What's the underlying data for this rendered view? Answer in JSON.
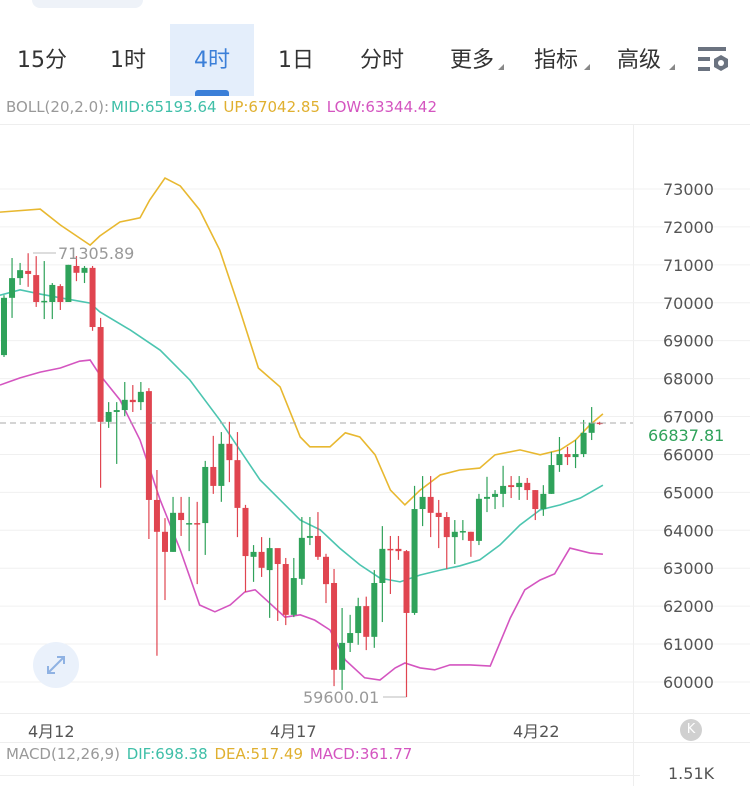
{
  "tabs": [
    {
      "label": "15分",
      "active": false
    },
    {
      "label": "1时",
      "active": false
    },
    {
      "label": "4时",
      "active": true
    },
    {
      "label": "1日",
      "active": false
    },
    {
      "label": "分时",
      "active": false
    },
    {
      "label": "更多",
      "active": false,
      "dropdown": true
    },
    {
      "label": "指标",
      "active": false,
      "dropdown": true
    },
    {
      "label": "高级",
      "active": false,
      "dropdown": true
    }
  ],
  "settings_icon": "chart-settings-icon",
  "boll": {
    "name": "BOLL(20,2.0):",
    "mid": "MID:65193.64",
    "up": "UP:67042.85",
    "low": "LOW:63344.42"
  },
  "macd": {
    "name": "MACD(12,26,9)",
    "dif": "DIF:698.38",
    "dea": "DEA:517.49",
    "macd": "MACD:361.77"
  },
  "macd_axis_label": "1.51K",
  "colors": {
    "up": "#2fa25a",
    "down": "#e04550",
    "mid": "#4cc5b0",
    "upper": "#e8b830",
    "lower": "#d455c0",
    "accent": "#3b7fd8"
  },
  "last_price": "66837.81",
  "max_label": "71305.89",
  "min_label": "59600.01",
  "chart_data": {
    "type": "candlestick",
    "y_ticks": [
      73000,
      72000,
      71000,
      70000,
      69000,
      68000,
      67000,
      66000,
      65000,
      64000,
      63000,
      62000,
      61000,
      60000
    ],
    "y_tick_labels": [
      "73000",
      "72000",
      "71000",
      "70000",
      "69000",
      "68000",
      "67000",
      "66000",
      "65000",
      "64000",
      "63000",
      "62000",
      "61000",
      "60000"
    ],
    "ylim": [
      59600,
      73300
    ],
    "grid": true,
    "date_ticks": [
      {
        "label": "4月12",
        "index": 5.5
      },
      {
        "label": "4月17",
        "index": 35.5
      },
      {
        "label": "4月22",
        "index": 66
      }
    ],
    "last_price": 66837.81,
    "candles_ohlc": [
      [
        68620,
        70200,
        68570,
        70130
      ],
      [
        70130,
        71180,
        69600,
        70650
      ],
      [
        70650,
        71050,
        70470,
        70860
      ],
      [
        70840,
        71306,
        70420,
        70760
      ],
      [
        70730,
        71230,
        69890,
        70020
      ],
      [
        70020,
        71100,
        69570,
        70050
      ],
      [
        70020,
        70520,
        69570,
        70470
      ],
      [
        70440,
        70490,
        69810,
        70020
      ],
      [
        70020,
        71000,
        70020,
        71000
      ],
      [
        70970,
        71230,
        70570,
        70790
      ],
      [
        70790,
        70970,
        70520,
        70920
      ],
      [
        70920,
        70970,
        69260,
        69360
      ],
      [
        69360,
        69600,
        65120,
        66860
      ],
      [
        66860,
        67380,
        66700,
        67120
      ],
      [
        67120,
        67380,
        65750,
        67170
      ],
      [
        67170,
        67910,
        67010,
        67440
      ],
      [
        67440,
        67830,
        67120,
        67380
      ],
      [
        67380,
        67910,
        67170,
        67650
      ],
      [
        67670,
        67750,
        63770,
        64800
      ],
      [
        64800,
        65590,
        60690,
        63960
      ],
      [
        63960,
        64320,
        62160,
        63430
      ],
      [
        63430,
        64880,
        63430,
        64460
      ],
      [
        64460,
        64880,
        63850,
        64270
      ],
      [
        64170,
        64880,
        63450,
        64190
      ],
      [
        64190,
        64750,
        62580,
        64170
      ],
      [
        64190,
        65830,
        63350,
        65670
      ],
      [
        65670,
        66490,
        64960,
        65170
      ],
      [
        65170,
        66590,
        64750,
        66280
      ],
      [
        66280,
        66860,
        65270,
        65850
      ],
      [
        65850,
        66590,
        63820,
        64590
      ],
      [
        64590,
        64670,
        62370,
        63320
      ],
      [
        63300,
        63610,
        62640,
        63430
      ],
      [
        63430,
        63820,
        62770,
        63010
      ],
      [
        62950,
        63800,
        61690,
        63530
      ],
      [
        63530,
        63400,
        61610,
        63110
      ],
      [
        63110,
        63270,
        61500,
        61770
      ],
      [
        61770,
        63270,
        61710,
        62740
      ],
      [
        62720,
        64350,
        62560,
        63800
      ],
      [
        63800,
        64350,
        63610,
        63850
      ],
      [
        63850,
        64480,
        63220,
        63300
      ],
      [
        63300,
        63380,
        62080,
        62580
      ],
      [
        62610,
        62980,
        59890,
        60320
      ],
      [
        60320,
        61950,
        59790,
        61030
      ],
      [
        61030,
        61770,
        60790,
        61290
      ],
      [
        61290,
        62220,
        60980,
        62000
      ],
      [
        62000,
        62250,
        60840,
        61190
      ],
      [
        61190,
        62950,
        60900,
        62610
      ],
      [
        62610,
        64110,
        61580,
        63510
      ],
      [
        63510,
        63850,
        62320,
        63480
      ],
      [
        63510,
        63850,
        63220,
        63450
      ],
      [
        63450,
        63480,
        59600,
        61820
      ],
      [
        61820,
        65170,
        61770,
        64560
      ],
      [
        64560,
        65430,
        64110,
        64880
      ],
      [
        64880,
        65430,
        63820,
        64460
      ],
      [
        64460,
        64800,
        63530,
        64350
      ],
      [
        64350,
        64480,
        62980,
        63820
      ],
      [
        63820,
        64270,
        63110,
        63960
      ],
      [
        63960,
        64270,
        63740,
        63980
      ],
      [
        63960,
        63960,
        63300,
        63720
      ],
      [
        63720,
        64960,
        63610,
        64830
      ],
      [
        64830,
        65410,
        64480,
        64880
      ],
      [
        64880,
        65060,
        64560,
        64960
      ],
      [
        64960,
        65700,
        64610,
        65170
      ],
      [
        65190,
        65430,
        64850,
        65140
      ],
      [
        65140,
        65430,
        64800,
        65250
      ],
      [
        65250,
        65380,
        64800,
        65060
      ],
      [
        65060,
        65060,
        64270,
        64560
      ],
      [
        64560,
        65190,
        64380,
        64960
      ],
      [
        64960,
        66070,
        64960,
        65720
      ],
      [
        65720,
        66460,
        65540,
        66010
      ],
      [
        66010,
        66200,
        65720,
        65930
      ],
      [
        65930,
        66380,
        65640,
        66010
      ],
      [
        66010,
        66910,
        65930,
        66570
      ],
      [
        66570,
        67250,
        66380,
        66840
      ],
      [
        66840,
        66860,
        66780,
        66838
      ]
    ],
    "boll_upper": [
      [
        -0.5,
        72390
      ],
      [
        4.5,
        72470
      ],
      [
        7,
        72050
      ],
      [
        10.7,
        71520
      ],
      [
        11.9,
        71760
      ],
      [
        14.4,
        72130
      ],
      [
        16.9,
        72240
      ],
      [
        18.1,
        72710
      ],
      [
        20,
        73290
      ],
      [
        21.9,
        73080
      ],
      [
        24.3,
        72450
      ],
      [
        26.8,
        71390
      ],
      [
        29.3,
        69810
      ],
      [
        31.6,
        68280
      ],
      [
        34.3,
        67780
      ],
      [
        36.8,
        66460
      ],
      [
        38,
        66200
      ],
      [
        40.5,
        66200
      ],
      [
        42.4,
        66570
      ],
      [
        44.2,
        66460
      ],
      [
        46.1,
        65990
      ],
      [
        48,
        65060
      ],
      [
        49.8,
        64670
      ],
      [
        51.7,
        65060
      ],
      [
        54.2,
        65460
      ],
      [
        56.6,
        65590
      ],
      [
        59.1,
        65640
      ],
      [
        61,
        65990
      ],
      [
        64.1,
        66120
      ],
      [
        66.6,
        65990
      ],
      [
        69.1,
        66120
      ],
      [
        71,
        66380
      ],
      [
        72.8,
        66780
      ],
      [
        74.4,
        67070
      ]
    ],
    "boll_mid": [
      [
        -0.5,
        70200
      ],
      [
        2,
        70340
      ],
      [
        4.5,
        70230
      ],
      [
        7,
        70130
      ],
      [
        10.7,
        69990
      ],
      [
        11.9,
        69760
      ],
      [
        15.7,
        69280
      ],
      [
        19.4,
        68750
      ],
      [
        23.1,
        67960
      ],
      [
        26.8,
        66910
      ],
      [
        29.3,
        66120
      ],
      [
        31.8,
        65330
      ],
      [
        34.3,
        64800
      ],
      [
        36.8,
        64270
      ],
      [
        39.3,
        64010
      ],
      [
        41.7,
        63530
      ],
      [
        44.2,
        63090
      ],
      [
        46.7,
        62740
      ],
      [
        49.2,
        62640
      ],
      [
        51.7,
        62820
      ],
      [
        54.2,
        62950
      ],
      [
        56.6,
        63060
      ],
      [
        59.1,
        63220
      ],
      [
        61.6,
        63610
      ],
      [
        64.1,
        64140
      ],
      [
        66.6,
        64540
      ],
      [
        69.1,
        64670
      ],
      [
        71.6,
        64850
      ],
      [
        74.4,
        65190
      ]
    ],
    "boll_lower": [
      [
        -0.5,
        67830
      ],
      [
        2,
        68020
      ],
      [
        4.5,
        68170
      ],
      [
        7,
        68280
      ],
      [
        9.4,
        68460
      ],
      [
        10.7,
        68490
      ],
      [
        11.9,
        68100
      ],
      [
        14.4,
        67440
      ],
      [
        16.9,
        66380
      ],
      [
        19.4,
        64800
      ],
      [
        21.9,
        63480
      ],
      [
        24.3,
        62030
      ],
      [
        26.2,
        61850
      ],
      [
        28.1,
        62030
      ],
      [
        29.9,
        62370
      ],
      [
        31.2,
        62430
      ],
      [
        33,
        62080
      ],
      [
        34.9,
        61710
      ],
      [
        36.8,
        61770
      ],
      [
        38.6,
        61630
      ],
      [
        40.5,
        61370
      ],
      [
        42.4,
        60580
      ],
      [
        44.8,
        60110
      ],
      [
        46.7,
        60050
      ],
      [
        48.6,
        60370
      ],
      [
        49.8,
        60500
      ],
      [
        51.7,
        60370
      ],
      [
        53.5,
        60320
      ],
      [
        55.4,
        60450
      ],
      [
        57.9,
        60450
      ],
      [
        60.4,
        60420
      ],
      [
        62.9,
        61690
      ],
      [
        64.7,
        62430
      ],
      [
        66.6,
        62690
      ],
      [
        68.4,
        62850
      ],
      [
        70.3,
        63530
      ],
      [
        72.8,
        63400
      ],
      [
        74.4,
        63370
      ]
    ]
  }
}
